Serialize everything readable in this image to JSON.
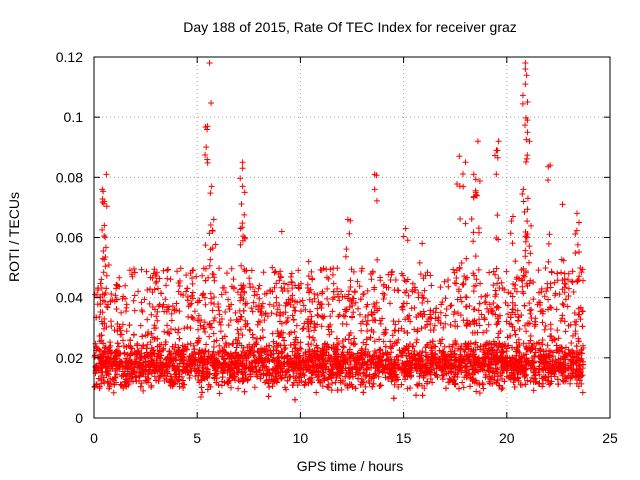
{
  "chart_data": {
    "type": "scatter",
    "title": "Day 188 of 2015, Rate Of TEC Index for receiver graz",
    "xlabel": "GPS time / hours",
    "ylabel": "ROTI / TECUs",
    "xlim": [
      0,
      25
    ],
    "ylim": [
      0,
      0.12
    ],
    "xticks": [
      0,
      5,
      10,
      15,
      20,
      25
    ],
    "xtick_labels": [
      "0",
      "5",
      "10",
      "15",
      "20",
      "25"
    ],
    "yticks": [
      0,
      0.02,
      0.04,
      0.06,
      0.08,
      0.1,
      0.12
    ],
    "ytick_labels": [
      "0",
      "0.02",
      "0.04",
      "0.06",
      "0.08",
      "0.1",
      "0.12"
    ],
    "grid": true,
    "marker": "+",
    "color": "#ff0000",
    "series": [
      {
        "name": "ROTI",
        "x_range": [
          0,
          23.7
        ],
        "approx_baseline": 0.018,
        "notable_points": [
          {
            "x": 0.6,
            "y": 0.081
          },
          {
            "x": 0.4,
            "y": 0.076
          },
          {
            "x": 0.5,
            "y": 0.072
          },
          {
            "x": 0.5,
            "y": 0.064
          },
          {
            "x": 5.6,
            "y": 0.118
          },
          {
            "x": 5.5,
            "y": 0.097
          },
          {
            "x": 5.7,
            "y": 0.077
          },
          {
            "x": 5.8,
            "y": 0.066
          },
          {
            "x": 7.2,
            "y": 0.085
          },
          {
            "x": 7.2,
            "y": 0.083
          },
          {
            "x": 7.2,
            "y": 0.077
          },
          {
            "x": 7.3,
            "y": 0.06
          },
          {
            "x": 9.1,
            "y": 0.062
          },
          {
            "x": 10.4,
            "y": 0.052
          },
          {
            "x": 12.3,
            "y": 0.066
          },
          {
            "x": 13.6,
            "y": 0.081
          },
          {
            "x": 13.6,
            "y": 0.076
          },
          {
            "x": 15.1,
            "y": 0.063
          },
          {
            "x": 15.9,
            "y": 0.058
          },
          {
            "x": 17.7,
            "y": 0.087
          },
          {
            "x": 18.0,
            "y": 0.085
          },
          {
            "x": 18.4,
            "y": 0.081
          },
          {
            "x": 18.6,
            "y": 0.092
          },
          {
            "x": 18.5,
            "y": 0.075
          },
          {
            "x": 19.6,
            "y": 0.092
          },
          {
            "x": 19.5,
            "y": 0.089
          },
          {
            "x": 20.3,
            "y": 0.067
          },
          {
            "x": 20.9,
            "y": 0.118
          },
          {
            "x": 20.9,
            "y": 0.116
          },
          {
            "x": 20.9,
            "y": 0.111
          },
          {
            "x": 21.0,
            "y": 0.099
          },
          {
            "x": 21.0,
            "y": 0.095
          },
          {
            "x": 21.1,
            "y": 0.092
          },
          {
            "x": 20.8,
            "y": 0.076
          },
          {
            "x": 22.1,
            "y": 0.084
          },
          {
            "x": 22.7,
            "y": 0.071
          },
          {
            "x": 23.4,
            "y": 0.068
          },
          {
            "x": 23.5,
            "y": 0.065
          }
        ]
      }
    ]
  }
}
